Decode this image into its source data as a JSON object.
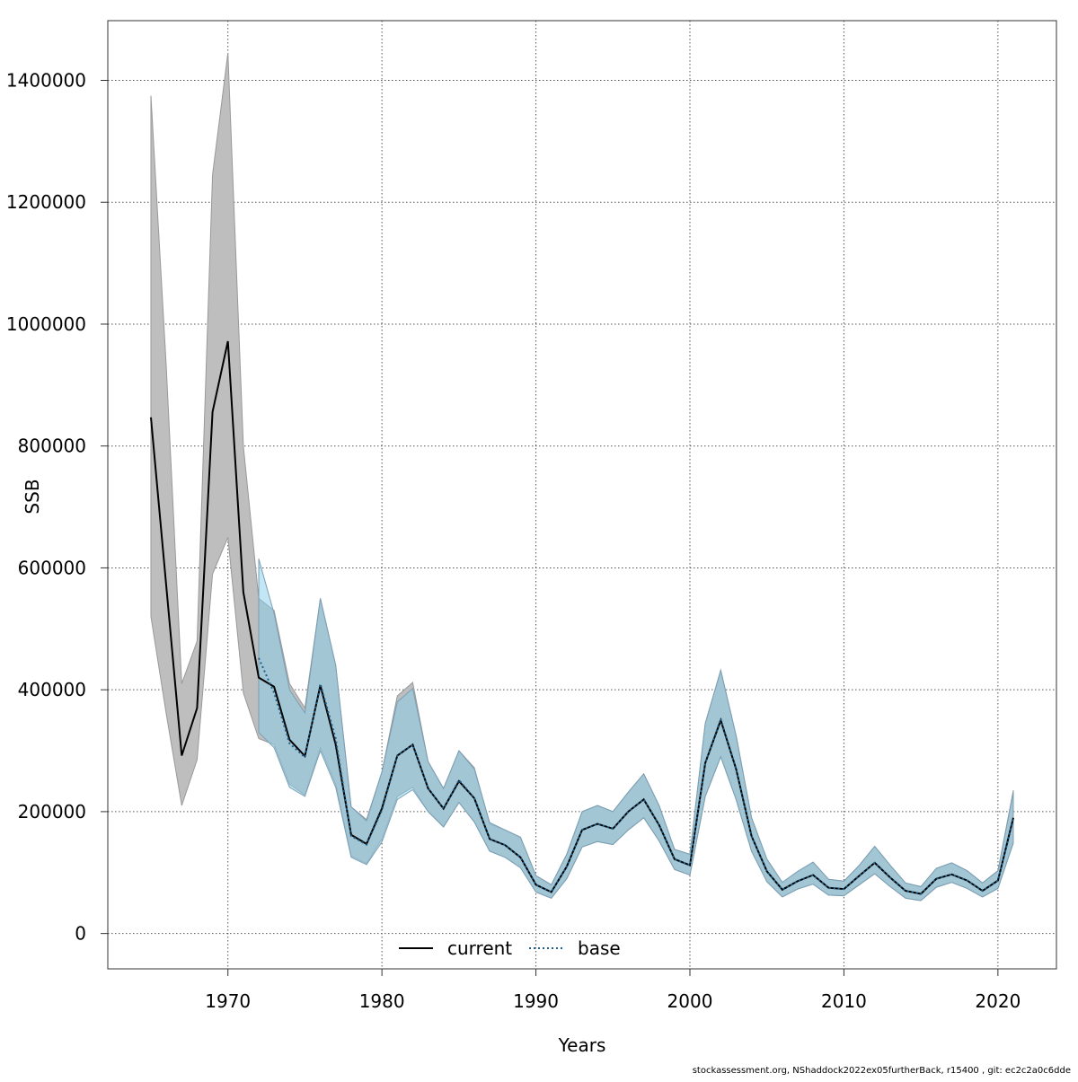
{
  "chart_data": {
    "type": "line",
    "xlabel": "Years",
    "ylabel": "SSB",
    "xlim": [
      1962.2,
      2023.8
    ],
    "ylim": [
      -58000,
      1498000
    ],
    "x_ticks": [
      1970,
      1980,
      1990,
      2000,
      2010,
      2020
    ],
    "x_tick_labels": [
      "1970",
      "1980",
      "1990",
      "2000",
      "2010",
      "2020"
    ],
    "y_ticks": [
      0,
      200000,
      400000,
      600000,
      800000,
      1000000,
      1200000,
      1400000
    ],
    "y_tick_labels": [
      "0",
      "200000",
      "400000",
      "600000",
      "800000",
      "1000000",
      "1200000",
      "1400000"
    ],
    "grid": true,
    "legend_position": "bottom-center",
    "colors": {
      "current_band": "#bebebe",
      "base_band": "#87ceeb",
      "overlap_band": "#a0c4d8",
      "current_line": "#000000",
      "base_line": "#1f5f8b",
      "grid": "#555555"
    },
    "series": [
      {
        "name": "current",
        "style": "solid",
        "x": [
          1965,
          1966,
          1967,
          1968,
          1969,
          1970,
          1971,
          1972,
          1973,
          1974,
          1975,
          1976,
          1977,
          1978,
          1979,
          1980,
          1981,
          1982,
          1983,
          1984,
          1985,
          1986,
          1987,
          1988,
          1989,
          1990,
          1991,
          1992,
          1993,
          1994,
          1995,
          1996,
          1997,
          1998,
          1999,
          2000,
          2001,
          2002,
          2003,
          2004,
          2005,
          2006,
          2007,
          2008,
          2009,
          2010,
          2011,
          2012,
          2013,
          2014,
          2015,
          2016,
          2017,
          2018,
          2019,
          2020,
          2021
        ],
        "y": [
          847000,
          570000,
          292000,
          370000,
          856000,
          972000,
          560000,
          420000,
          405000,
          318000,
          291000,
          407000,
          310000,
          162000,
          147000,
          205000,
          292000,
          310000,
          238000,
          205000,
          250000,
          222000,
          155000,
          145000,
          125000,
          80000,
          68000,
          110000,
          170000,
          180000,
          172000,
          200000,
          220000,
          178000,
          122000,
          112000,
          280000,
          350000,
          270000,
          160000,
          102000,
          72000,
          86000,
          96000,
          75000,
          73000,
          95000,
          116000,
          92000,
          70000,
          65000,
          90000,
          97000,
          87000,
          70000,
          87000,
          190000
        ],
        "lower": [
          520000,
          360000,
          210000,
          285000,
          590000,
          650000,
          395000,
          320000,
          310000,
          245000,
          227000,
          305000,
          245000,
          127000,
          115000,
          155000,
          225000,
          240000,
          200000,
          175000,
          215000,
          183000,
          135000,
          125000,
          108000,
          68000,
          58000,
          90000,
          142000,
          151000,
          146000,
          170000,
          190000,
          152000,
          105000,
          96000,
          225000,
          290000,
          220000,
          135000,
          85000,
          60000,
          73000,
          81000,
          63000,
          62000,
          80000,
          98000,
          77000,
          58000,
          54000,
          76000,
          84000,
          74000,
          60000,
          74000,
          150000
        ],
        "upper": [
          1375000,
          930000,
          410000,
          480000,
          1245000,
          1445000,
          800000,
          550000,
          530000,
          410000,
          370000,
          550000,
          440000,
          208000,
          187000,
          265000,
          390000,
          412000,
          282000,
          238000,
          300000,
          272000,
          180000,
          170000,
          158000,
          95000,
          80000,
          130000,
          200000,
          210000,
          200000,
          232000,
          262000,
          210000,
          138000,
          130000,
          345000,
          432000,
          325000,
          190000,
          122000,
          84000,
          102000,
          117000,
          89000,
          86000,
          112000,
          143000,
          112000,
          83000,
          77000,
          107000,
          116000,
          103000,
          83000,
          103000,
          235000
        ]
      },
      {
        "name": "base",
        "style": "dotted",
        "x": [
          1972,
          1973,
          1974,
          1975,
          1976,
          1977,
          1978,
          1979,
          1980,
          1981,
          1982,
          1983,
          1984,
          1985,
          1986,
          1987,
          1988,
          1989,
          1990,
          1991,
          1992,
          1993,
          1994,
          1995,
          1996,
          1997,
          1998,
          1999,
          2000,
          2001,
          2002,
          2003,
          2004,
          2005,
          2006,
          2007,
          2008,
          2009,
          2010,
          2011,
          2012,
          2013,
          2014,
          2015,
          2016,
          2017,
          2018,
          2019,
          2020,
          2021
        ],
        "y": [
          452000,
          395000,
          312000,
          289000,
          410000,
          320000,
          160000,
          146000,
          202000,
          292000,
          310000,
          238000,
          205000,
          252000,
          222000,
          155000,
          145000,
          125000,
          80000,
          68000,
          110000,
          170000,
          180000,
          172000,
          200000,
          220000,
          178000,
          122000,
          112000,
          280000,
          352000,
          270000,
          160000,
          102000,
          72000,
          86000,
          96000,
          75000,
          73000,
          95000,
          116000,
          92000,
          70000,
          65000,
          90000,
          97000,
          87000,
          70000,
          87000,
          188000
        ],
        "lower": [
          330000,
          305000,
          240000,
          225000,
          300000,
          240000,
          125000,
          113000,
          150000,
          220000,
          236000,
          200000,
          175000,
          215000,
          183000,
          135000,
          125000,
          108000,
          68000,
          58000,
          90000,
          142000,
          151000,
          146000,
          170000,
          190000,
          152000,
          105000,
          96000,
          225000,
          290000,
          220000,
          135000,
          85000,
          60000,
          73000,
          81000,
          63000,
          62000,
          80000,
          98000,
          77000,
          58000,
          54000,
          76000,
          84000,
          74000,
          60000,
          74000,
          148000
        ],
        "upper": [
          615000,
          525000,
          400000,
          362000,
          550000,
          440000,
          208000,
          185000,
          265000,
          380000,
          402000,
          282000,
          238000,
          300000,
          270000,
          182000,
          170000,
          158000,
          95000,
          80000,
          130000,
          200000,
          210000,
          200000,
          232000,
          262000,
          210000,
          138000,
          130000,
          345000,
          432000,
          325000,
          190000,
          122000,
          84000,
          102000,
          117000,
          89000,
          86000,
          112000,
          143000,
          112000,
          83000,
          77000,
          107000,
          116000,
          103000,
          83000,
          103000,
          232000
        ]
      }
    ]
  },
  "footer": "stockassessment.org, NShaddock2022ex05furtherBack, r15400 , git: ec2c2a0c6dde"
}
